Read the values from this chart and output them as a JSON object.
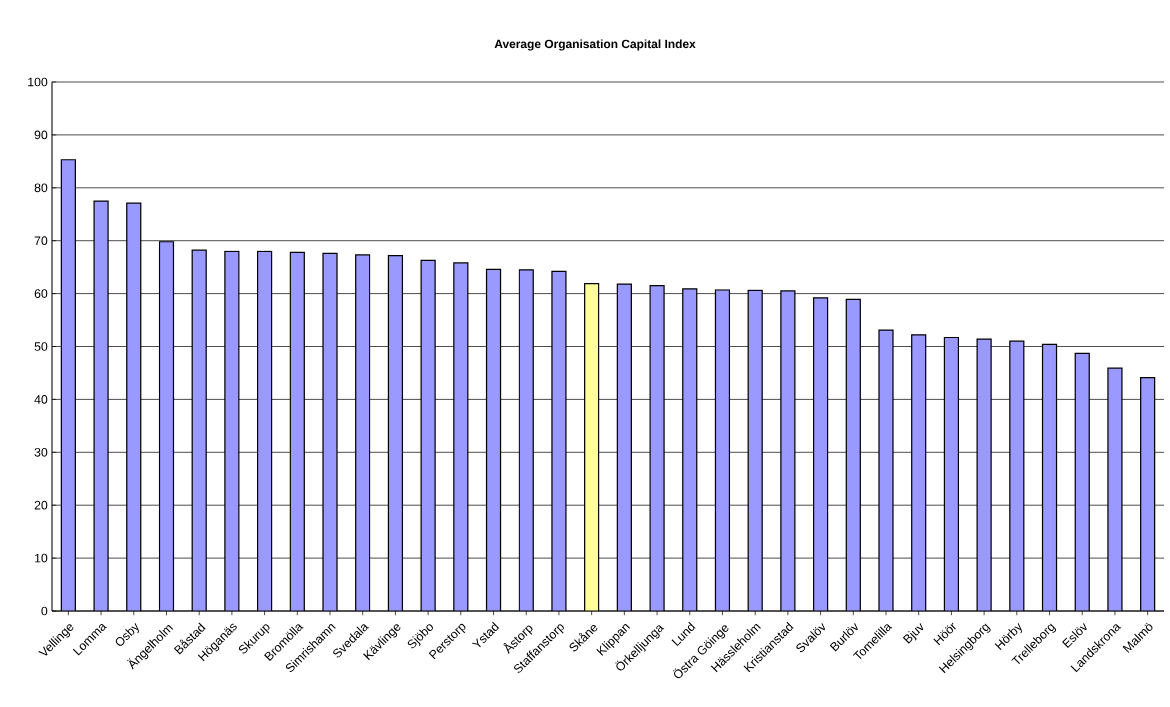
{
  "chart_data": {
    "type": "bar",
    "title": "Average Organisation Capital Index",
    "categories": [
      "Vellinge",
      "Lomma",
      "Osby",
      "Ängelholm",
      "Båstad",
      "Höganäs",
      "Skurup",
      "Bromölla",
      "Simrishamn",
      "Svedala",
      "Kävlinge",
      "Sjöbo",
      "Perstorp",
      "Ystad",
      "Åstorp",
      "Staffanstorp",
      "Skåne",
      "Klippan",
      "Örkelljunga",
      "Lund",
      "Östra Göinge",
      "Hässleholm",
      "Kristianstad",
      "Svalöv",
      "Burlöv",
      "Tomelilla",
      "Bjuv",
      "Höör",
      "Helsingborg",
      "Hörby",
      "Trelleborg",
      "Eslöv",
      "Landskrona",
      "Malmö"
    ],
    "values": [
      85.3,
      77.5,
      77.1,
      69.8,
      68.2,
      68.0,
      68.0,
      67.8,
      67.6,
      67.3,
      67.2,
      66.3,
      65.8,
      64.6,
      64.5,
      64.2,
      61.9,
      61.8,
      61.5,
      60.9,
      60.7,
      60.6,
      60.5,
      59.2,
      58.9,
      53.1,
      52.2,
      51.7,
      51.4,
      51.0,
      50.4,
      48.7,
      45.9,
      44.1
    ],
    "colors": [
      "#9999ff",
      "#9999ff",
      "#9999ff",
      "#9999ff",
      "#9999ff",
      "#9999ff",
      "#9999ff",
      "#9999ff",
      "#9999ff",
      "#9999ff",
      "#9999ff",
      "#9999ff",
      "#9999ff",
      "#9999ff",
      "#9999ff",
      "#9999ff",
      "#ffff99",
      "#9999ff",
      "#9999ff",
      "#9999ff",
      "#9999ff",
      "#9999ff",
      "#9999ff",
      "#9999ff",
      "#9999ff",
      "#9999ff",
      "#9999ff",
      "#9999ff",
      "#9999ff",
      "#9999ff",
      "#9999ff",
      "#9999ff",
      "#9999ff",
      "#9999ff"
    ],
    "ylim": [
      0,
      100
    ],
    "yticks": [
      0,
      10,
      20,
      30,
      40,
      50,
      60,
      70,
      80,
      90,
      100
    ],
    "grid": "y"
  }
}
